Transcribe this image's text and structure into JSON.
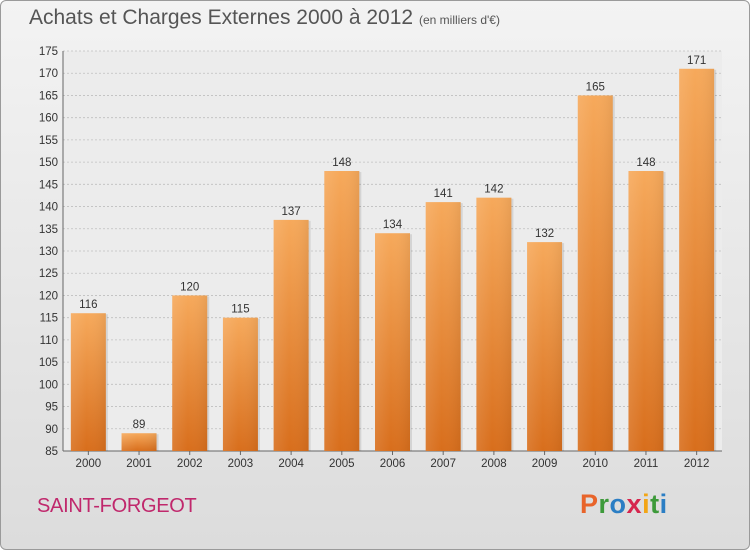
{
  "header": {
    "title": "Achats et Charges Externes 2000 à 2012",
    "subtitle": "(en milliers d'€)"
  },
  "footer": {
    "place": "SAINT-FORGEOT",
    "logo_text": "Proxiti",
    "logo_colors": [
      "#e8642a",
      "#3d9a3a",
      "#2b7ec4",
      "#d6264e",
      "#f2a516",
      "#3d9a3a",
      "#2b7ec4"
    ]
  },
  "colors": {
    "bar_light": "#f6a95b",
    "bar_dark": "#d86e1c",
    "grid": "#bfbfbf",
    "axis_text": "#333333",
    "place": "#c0286c"
  },
  "chart_data": {
    "type": "bar",
    "title": "Achats et Charges Externes 2000 à 2012",
    "subtitle": "(en milliers d'€)",
    "categories": [
      "2000",
      "2001",
      "2002",
      "2003",
      "2004",
      "2005",
      "2006",
      "2007",
      "2008",
      "2009",
      "2010",
      "2011",
      "2012"
    ],
    "values": [
      116,
      89,
      120,
      115,
      137,
      148,
      134,
      141,
      142,
      132,
      165,
      148,
      171
    ],
    "ylim": [
      85,
      175
    ],
    "yticks": [
      85,
      90,
      95,
      100,
      105,
      110,
      115,
      120,
      125,
      130,
      135,
      140,
      145,
      150,
      155,
      160,
      165,
      170,
      175
    ],
    "grid": true,
    "xlabel": "",
    "ylabel": ""
  }
}
